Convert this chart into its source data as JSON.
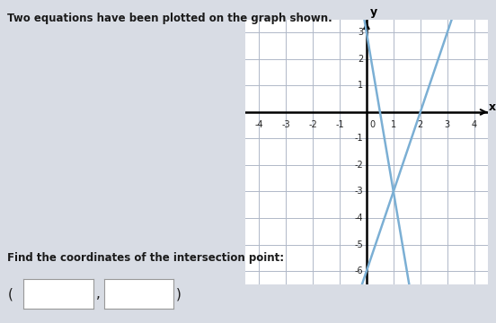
{
  "title_text": "Two equations have been plotted on the graph shown.",
  "footer_text": "Find the coordinates of the intersection point:",
  "line1": {
    "slope": -6,
    "intercept": 3,
    "color": "#7bafd4",
    "linewidth": 1.8
  },
  "line2": {
    "slope": 3,
    "intercept": -6,
    "color": "#7bafd4",
    "linewidth": 1.8
  },
  "xlim": [
    -4.5,
    4.5
  ],
  "ylim": [
    -6.5,
    3.5
  ],
  "xticks": [
    -4,
    -3,
    -2,
    -1,
    1,
    2,
    3,
    4
  ],
  "yticks": [
    -6,
    -5,
    -4,
    -3,
    -2,
    -1,
    1,
    2,
    3
  ],
  "xlabel": "x",
  "ylabel": "y",
  "grid_color": "#b0b8c8",
  "axis_color": "#000000",
  "bg_color": "#ffffff",
  "outer_bg": "#d8dce4",
  "intersection": [
    1,
    -3
  ],
  "tick_fontsize": 7,
  "label_fontsize": 9
}
